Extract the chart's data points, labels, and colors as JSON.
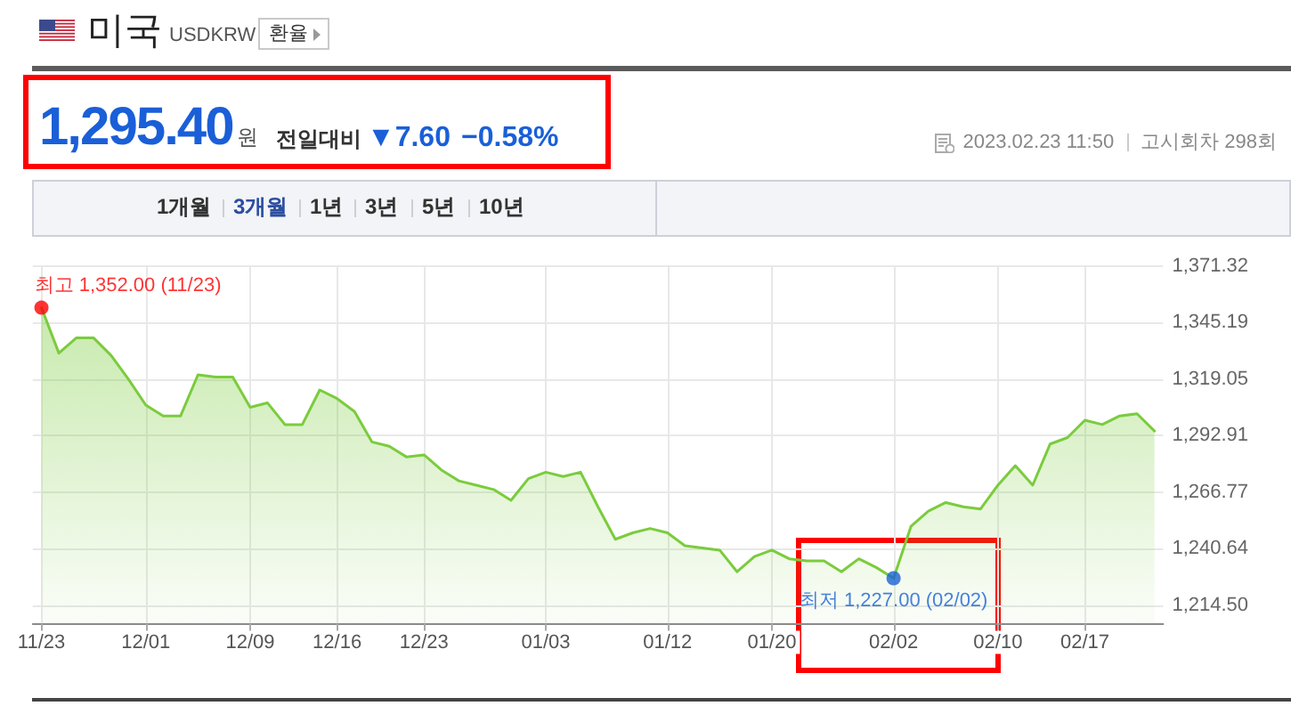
{
  "chart_data": {
    "type": "area",
    "title": "미국",
    "subtitle": "USDKRW",
    "annotations": [
      "환율",
      "1,295.40",
      "원",
      "전일대비",
      "▼7.60",
      "−0.58%",
      "2023.02.23 11:50",
      "고시회차 298회",
      "1개월",
      "3개월",
      "1년",
      "3년",
      "5년",
      "10년"
    ],
    "categories": [
      "11/23",
      null,
      null,
      null,
      null,
      null,
      "12/01",
      null,
      null,
      null,
      null,
      null,
      "12/09",
      null,
      null,
      null,
      null,
      "12/16",
      null,
      null,
      null,
      null,
      "12/23",
      null,
      null,
      null,
      null,
      null,
      null,
      "01/03",
      null,
      null,
      null,
      null,
      null,
      null,
      "01/12",
      null,
      null,
      null,
      null,
      null,
      "01/20",
      null,
      null,
      null,
      null,
      null,
      null,
      "02/02",
      null,
      null,
      null,
      null,
      null,
      "02/10",
      null,
      null,
      null,
      null,
      "02/17",
      null,
      null,
      null,
      null
    ],
    "ylim": [
      1206,
      1371.32
    ],
    "yticks": [
      {
        "value": 1214.5,
        "label": "1,214.50"
      },
      {
        "value": 1240.64,
        "label": "1,240.64"
      },
      {
        "value": 1266.77,
        "label": "1,266.77"
      },
      {
        "value": 1292.91,
        "label": "1,292.91"
      },
      {
        "value": 1319.05,
        "label": "1,319.05"
      },
      {
        "value": 1345.19,
        "label": "1,345.19"
      },
      {
        "value": 1371.32,
        "label": "1,371.32"
      }
    ],
    "grid": true,
    "marker": "none",
    "series": [
      {
        "color": "#7acc3c",
        "values": [
          1352,
          1331,
          1338,
          1338,
          1330,
          1319,
          1307,
          1302,
          1302,
          1321,
          1320,
          1320,
          1306,
          1308,
          1298,
          1298,
          1314,
          1310,
          1304,
          1290,
          1288,
          1283,
          1284,
          1277,
          1272,
          1270,
          1268,
          1263,
          1273,
          1276,
          1274,
          1276,
          1260,
          1245,
          1248,
          1250,
          1248,
          1242,
          1241,
          1240,
          1230,
          1237,
          1240,
          1236,
          1235,
          1235,
          1230,
          1236,
          1232,
          1227,
          1251,
          1258,
          1262,
          1260,
          1259,
          1270,
          1279,
          1270,
          1289,
          1292,
          1300,
          1298,
          1302,
          1303,
          1295
        ]
      },
      {
        "type": "scatter",
        "marker": "circle",
        "x": [
          "11/23",
          "02/02"
        ],
        "values": [
          1352,
          1227
        ],
        "colors": [
          "#ff0000",
          "#1a62d6"
        ],
        "value_labels": [
          "최고 1,352.00 (11/23)",
          "최저 1,227.00 (02/02)"
        ]
      }
    ]
  }
}
